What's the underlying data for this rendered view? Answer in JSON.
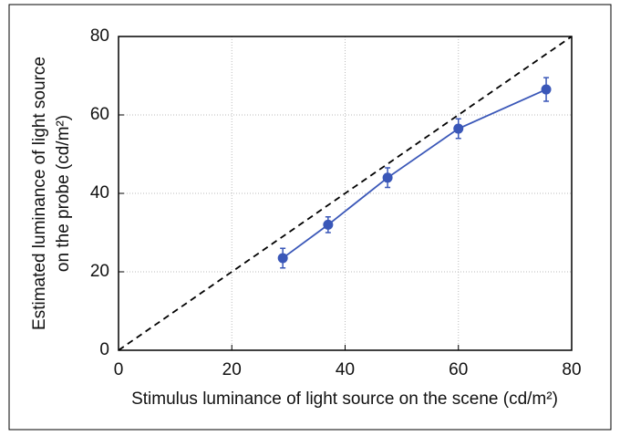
{
  "chart_data": {
    "type": "line",
    "xlabel": "Stimulus luminance of light source on the scene (cd/m²)",
    "ylabel": [
      "Estimated luminance of light source",
      "on the probe (cd/m²)"
    ],
    "x": [
      29,
      37,
      47.5,
      60,
      75.5
    ],
    "series": [
      {
        "color": "#3a57b8",
        "values": [
          23.5,
          32,
          44,
          56.5,
          66.5
        ],
        "errors": [
          2.5,
          2,
          2.5,
          2.5,
          3
        ]
      }
    ],
    "xlim": [
      0,
      80
    ],
    "ylim": [
      0,
      80
    ],
    "xticks": [
      0,
      20,
      40,
      60,
      80
    ],
    "yticks": [
      0,
      20,
      40,
      60,
      80
    ],
    "grid": true,
    "identity_line": true
  }
}
